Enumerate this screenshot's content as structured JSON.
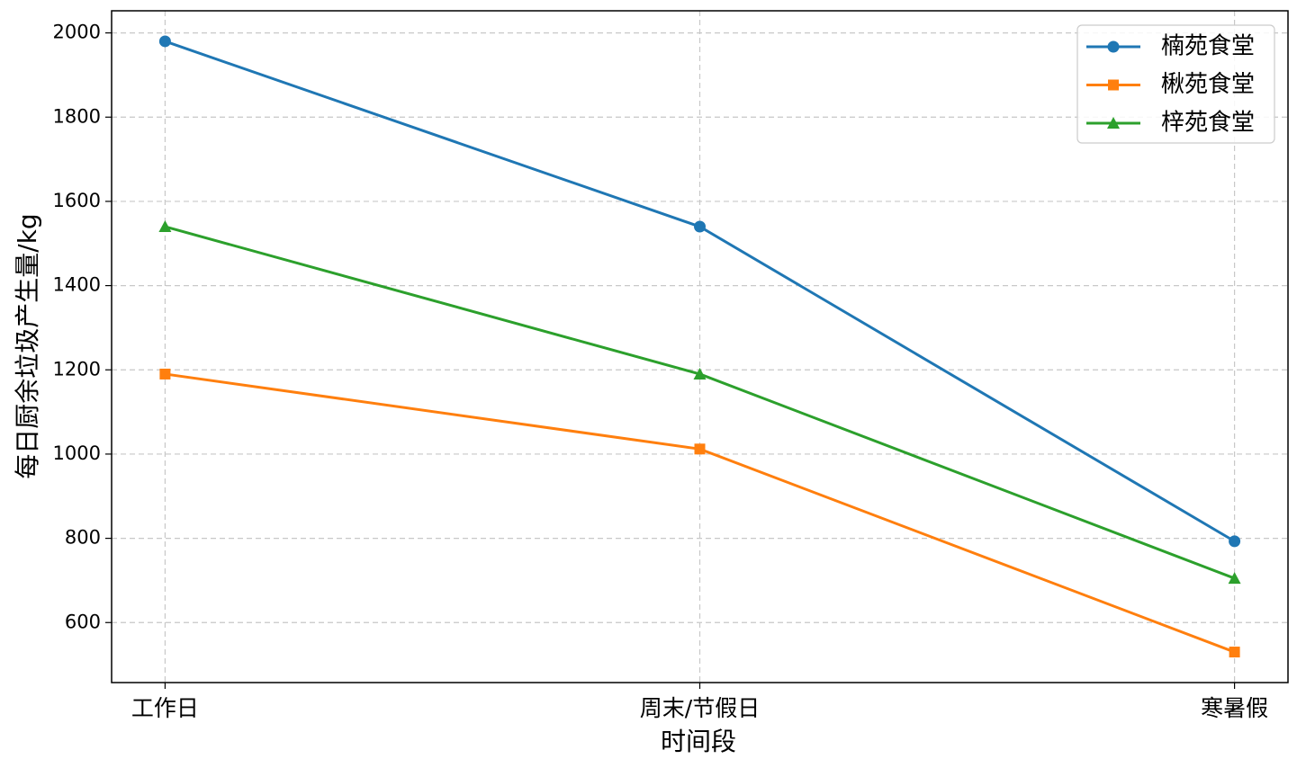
{
  "chart_data": {
    "type": "line",
    "xlabel": "时间段",
    "ylabel": "每日厨余垃圾产生量/kg",
    "categories": [
      "工作日",
      "周末/节假日",
      "寒暑假"
    ],
    "series": [
      {
        "name": "楠苑食堂",
        "color": "#1f77b4",
        "marker": "circle",
        "values": [
          1980,
          1540,
          793
        ]
      },
      {
        "name": "楸苑食堂",
        "color": "#ff7f0e",
        "marker": "square",
        "values": [
          1190,
          1012,
          530
        ]
      },
      {
        "name": "梓苑食堂",
        "color": "#2ca02c",
        "marker": "triangle",
        "values": [
          1540,
          1190,
          705
        ]
      }
    ],
    "ylim": [
      457.5,
      2052.5
    ],
    "yticks": [
      600,
      800,
      1000,
      1200,
      1400,
      1600,
      1800,
      2000
    ],
    "grid": true,
    "legend": "upper right"
  }
}
